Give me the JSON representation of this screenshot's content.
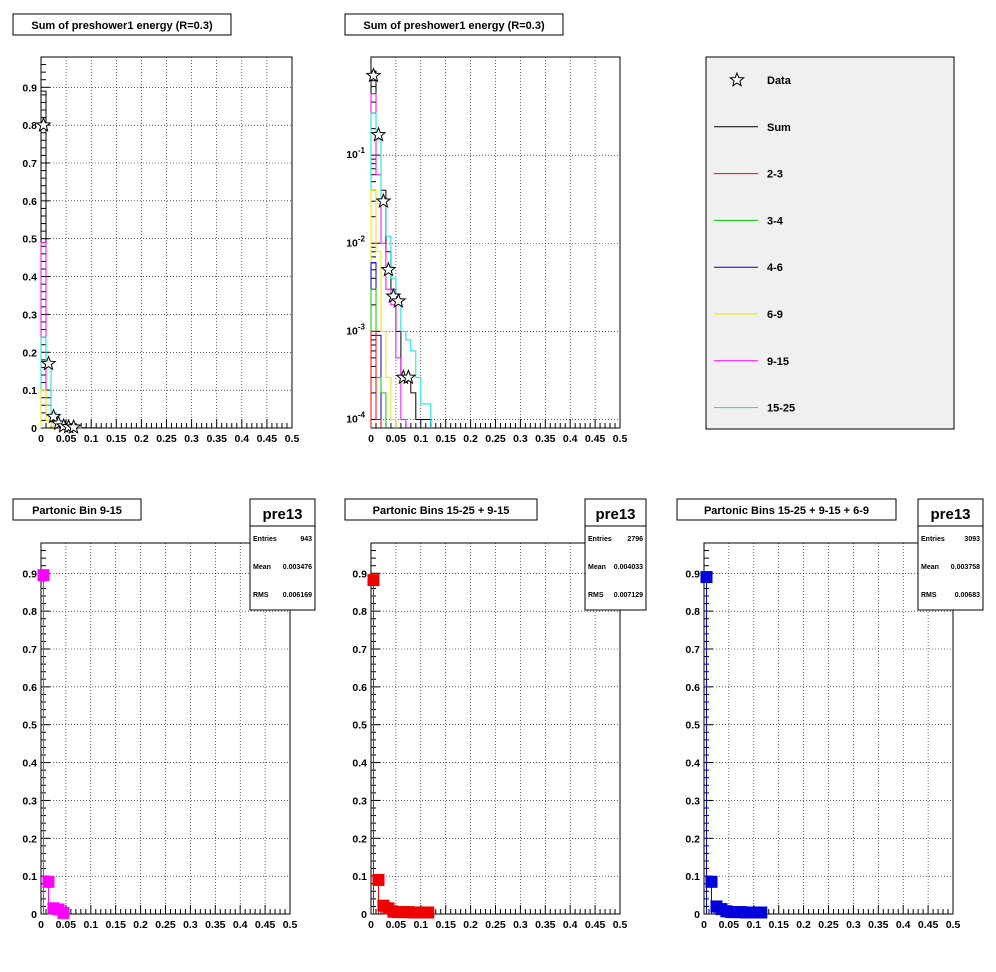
{
  "x_ticks": [
    "0",
    "0.05",
    "0.1",
    "0.15",
    "0.2",
    "0.25",
    "0.3",
    "0.35",
    "0.4",
    "0.45",
    "0.5"
  ],
  "colors": {
    "Sum": "#000000",
    "2-3": "#ff0000",
    "3-4": "#00cc00",
    "4-6": "#0000cc",
    "6-9": "#e6e600",
    "9-15": "#ff00ff",
    "15-25": "#00e0e0"
  },
  "legend": {
    "entries": [
      {
        "label": "Data",
        "kind": "marker",
        "color": "#000000"
      },
      {
        "label": "Sum",
        "kind": "line",
        "color": "#000000"
      },
      {
        "label": "2-3",
        "kind": "line",
        "color": "#ff0000"
      },
      {
        "label": "3-4",
        "kind": "line",
        "color": "#00cc00"
      },
      {
        "label": "4-6",
        "kind": "line",
        "color": "#0000cc"
      },
      {
        "label": "6-9",
        "kind": "line",
        "color": "#e6e600"
      },
      {
        "label": "9-15",
        "kind": "line",
        "color": "#ff00ff"
      },
      {
        "label": "15-25",
        "kind": "line",
        "color": "#00e0e0"
      }
    ]
  },
  "chart_data": [
    {
      "type": "line",
      "title": "Sum of preshower1 energy (R=0.3)",
      "xlim": [
        0,
        0.5
      ],
      "ylim": [
        0,
        0.98
      ],
      "log_y": false,
      "grid": true,
      "y_ticks": [
        "0",
        "0.1",
        "0.2",
        "0.3",
        "0.4",
        "0.5",
        "0.6",
        "0.7",
        "0.8",
        "0.9"
      ],
      "bin_width": 0.01,
      "series": [
        {
          "name": "Sum",
          "kind": "hist",
          "color": "#000000",
          "start": 0,
          "values": [
            0.89,
            0.08,
            0.02,
            0.01,
            0.004,
            0.002,
            0.001,
            0.0005,
            0.0004,
            0.0003,
            0.0003,
            0.0002
          ]
        },
        {
          "name": "9-15",
          "kind": "hist",
          "color": "#ff00ff",
          "start": 0,
          "values": [
            0.49,
            0.06,
            0.015,
            0.005,
            0.002
          ]
        },
        {
          "name": "15-25",
          "kind": "hist",
          "color": "#00e0e0",
          "start": 0,
          "values": [
            0.24,
            0.17,
            0.04,
            0.02,
            0.008,
            0.004,
            0.002,
            0.001
          ]
        },
        {
          "name": "6-9",
          "kind": "hist",
          "color": "#e6e600",
          "start": 0,
          "values": [
            0.1,
            0.02,
            0.005,
            0.002
          ]
        },
        {
          "name": "Data",
          "kind": "marker",
          "color": "#000000",
          "x": [
            0.005,
            0.015,
            0.025,
            0.035,
            0.045,
            0.055,
            0.065
          ],
          "y": [
            0.8,
            0.17,
            0.03,
            0.012,
            0.005,
            0.003,
            0.002
          ]
        }
      ]
    },
    {
      "type": "line",
      "title": "Sum of preshower1 energy (R=0.3)",
      "xlim": [
        0,
        0.5
      ],
      "ylim": [
        8e-05,
        1.3
      ],
      "log_y": true,
      "grid": true,
      "y_ticks": [
        {
          "value": 0.1,
          "label": "10-1"
        },
        {
          "value": 0.01,
          "label": "10-2"
        },
        {
          "value": 0.001,
          "label": "10-3"
        },
        {
          "value": 0.0001,
          "label": "10-4"
        }
      ],
      "bin_width": 0.01,
      "series": [
        {
          "name": "Sum",
          "kind": "hist",
          "color": "#000000",
          "start": 0,
          "values": [
            0.9,
            0.18,
            0.04,
            0.008,
            0.003,
            0.001,
            0.0003,
            0.0003,
            0.0002,
            0.0001,
            0.0001,
            0.0001
          ]
        },
        {
          "name": "9-15",
          "kind": "hist",
          "color": "#ff00ff",
          "start": 0,
          "values": [
            0.5,
            0.06,
            0.01,
            0.003,
            0.002,
            0.0005,
            0.0001
          ]
        },
        {
          "name": "15-25",
          "kind": "hist",
          "color": "#00e0e0",
          "start": 0,
          "values": [
            0.3,
            0.15,
            0.03,
            0.012,
            0.004,
            0.002,
            0.001,
            0.0008,
            0.0006,
            0.0003,
            0.00015,
            0.00015
          ]
        },
        {
          "name": "6-9",
          "kind": "hist",
          "color": "#e6e600",
          "start": 0,
          "values": [
            0.04,
            0.008,
            0.001,
            0.0003,
            0.0001
          ]
        },
        {
          "name": "4-6",
          "kind": "hist",
          "color": "#0000cc",
          "start": 0,
          "values": [
            0.006,
            0.0009
          ]
        },
        {
          "name": "3-4",
          "kind": "hist",
          "color": "#00cc00",
          "start": 0,
          "values": [
            0.003,
            0.0003,
            0.0002
          ]
        },
        {
          "name": "2-3",
          "kind": "hist",
          "color": "#ff0000",
          "start": 0,
          "values": [
            0.001,
            0.0001
          ]
        },
        {
          "name": "Data",
          "kind": "marker",
          "color": "#000000",
          "x": [
            0.005,
            0.015,
            0.025,
            0.035,
            0.045,
            0.055,
            0.065,
            0.075
          ],
          "y": [
            0.8,
            0.17,
            0.03,
            0.005,
            0.0025,
            0.0022,
            0.0003,
            0.0003
          ]
        }
      ]
    },
    {
      "type": "scatter",
      "title": "Partonic Bin 9-15",
      "xlim": [
        0,
        0.5
      ],
      "ylim": [
        0,
        0.98
      ],
      "log_y": false,
      "grid": true,
      "y_ticks": [
        "0",
        "0.1",
        "0.2",
        "0.3",
        "0.4",
        "0.5",
        "0.6",
        "0.7",
        "0.8",
        "0.9"
      ],
      "bin_width": 0.01,
      "stats": {
        "name": "pre13",
        "entries": "943",
        "mean": "0.003476",
        "rms": "0.006169"
      },
      "series": [
        {
          "name": "9-15",
          "kind": "square",
          "color": "#ff00ff",
          "x": [
            0.005,
            0.015,
            0.025,
            0.035,
            0.045
          ],
          "y": [
            0.895,
            0.085,
            0.015,
            0.012,
            0.003
          ]
        }
      ]
    },
    {
      "type": "scatter",
      "title": "Partonic Bins 15-25 + 9-15",
      "xlim": [
        0,
        0.5
      ],
      "ylim": [
        0,
        0.98
      ],
      "log_y": false,
      "grid": true,
      "y_ticks": [
        "0",
        "0.1",
        "0.2",
        "0.3",
        "0.4",
        "0.5",
        "0.6",
        "0.7",
        "0.8",
        "0.9"
      ],
      "bin_width": 0.01,
      "stats": {
        "name": "pre13",
        "entries": "2796",
        "mean": "0.004033",
        "rms": "0.007129"
      },
      "series": [
        {
          "name": "15-25 + 9-15",
          "kind": "square",
          "color": "#ee0000",
          "x": [
            0.005,
            0.015,
            0.025,
            0.035,
            0.045,
            0.055,
            0.065,
            0.075,
            0.085,
            0.095,
            0.105,
            0.115
          ],
          "y": [
            0.882,
            0.09,
            0.022,
            0.015,
            0.006,
            0.005,
            0.005,
            0.005,
            0.004,
            0.004,
            0.004,
            0.004
          ]
        }
      ]
    },
    {
      "type": "scatter",
      "title": "Partonic Bins 15-25 + 9-15 + 6-9",
      "xlim": [
        0,
        0.5
      ],
      "ylim": [
        0,
        0.98
      ],
      "log_y": false,
      "grid": true,
      "y_ticks": [
        "0",
        "0.1",
        "0.2",
        "0.3",
        "0.4",
        "0.5",
        "0.6",
        "0.7",
        "0.8",
        "0.9"
      ],
      "bin_width": 0.01,
      "stats": {
        "name": "pre13",
        "entries": "3093",
        "mean": "0.003758",
        "rms": "0.00683"
      },
      "series": [
        {
          "name": "15-25 + 9-15 + 6-9",
          "kind": "square",
          "color": "#0000dd",
          "x": [
            0.005,
            0.015,
            0.025,
            0.035,
            0.045,
            0.055,
            0.065,
            0.075,
            0.085,
            0.095,
            0.105,
            0.115
          ],
          "y": [
            0.89,
            0.085,
            0.02,
            0.013,
            0.007,
            0.005,
            0.005,
            0.005,
            0.004,
            0.004,
            0.004,
            0.004
          ]
        }
      ]
    }
  ]
}
